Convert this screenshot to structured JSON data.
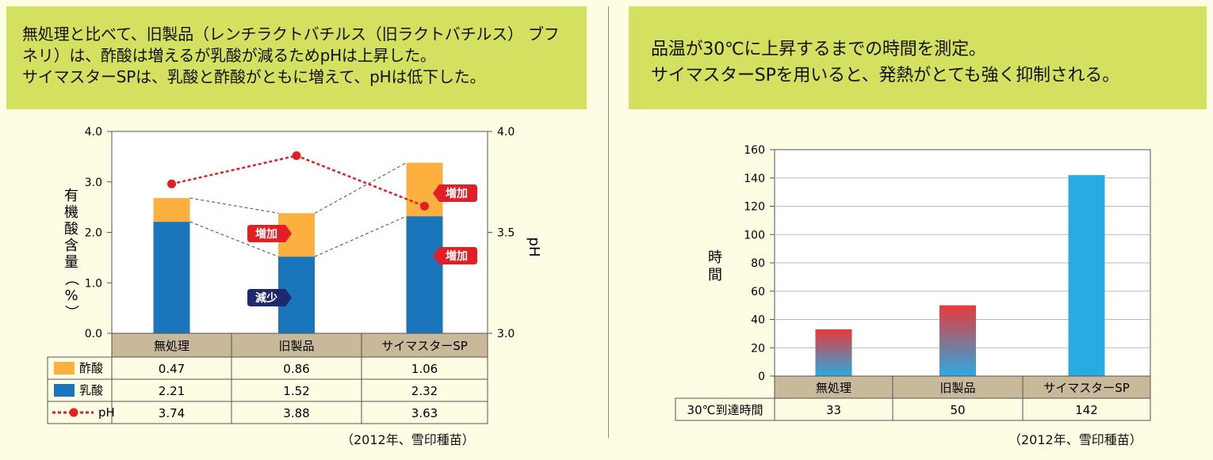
{
  "left_panel": {
    "caption_lines": [
      "無処理と比べて、旧製品（レンチラクトバチルス（旧ラクトバチルス） ブフ",
      "ネリ）は、酢酸は増えるが乳酸が減るためpHは上昇した。",
      "サイマスターSPは、乳酸と酢酸がともに増えて、pHは低下した。"
    ],
    "source": "（2012年、雪印種苗）",
    "annotations": {
      "increase": "増加",
      "decrease": "減少"
    }
  },
  "right_panel": {
    "caption_lines": [
      "品温が30℃に上昇するまでの時間を測定。",
      "サイマスターSPを用いると、発熱がとても強く抑制される。"
    ],
    "source": "（2012年、雪印種苗）"
  },
  "chart_data": [
    {
      "type": "bar",
      "stacked": true,
      "categories": [
        "無処理",
        "旧製品",
        "サイマスターSP"
      ],
      "ylabel": "有機酸含量（%）",
      "ylim": [
        0,
        4.0
      ],
      "yticks": [
        "0.0",
        "1.0",
        "2.0",
        "3.0",
        "4.0"
      ],
      "y2label": "pH",
      "y2lim": [
        3.0,
        4.0
      ],
      "y2ticks": [
        "3.0",
        "3.5",
        "4.0"
      ],
      "grid": false,
      "series": [
        {
          "name": "乳酸",
          "values": [
            2.21,
            1.52,
            2.32
          ],
          "color": "#1b75bb",
          "labels": [
            "2.21",
            "1.52",
            "2.32"
          ]
        },
        {
          "name": "酢酸",
          "values": [
            0.47,
            0.86,
            1.06
          ],
          "color": "#fbb040",
          "labels": [
            "0.47",
            "0.86",
            "1.06"
          ]
        },
        {
          "name": "pH",
          "values": [
            3.74,
            3.88,
            3.63
          ],
          "color": "#e01f26",
          "axis": "right",
          "style": "dotted-line-with-markers",
          "labels": [
            "3.74",
            "3.88",
            "3.63"
          ]
        }
      ],
      "table_order": [
        1,
        0,
        2
      ]
    },
    {
      "type": "bar",
      "categories": [
        "無処理",
        "旧製品",
        "サイマスターSP"
      ],
      "ylabel": "時間",
      "ylim": [
        0,
        160
      ],
      "yticks": [
        "0",
        "20",
        "40",
        "60",
        "80",
        "100",
        "120",
        "140",
        "160"
      ],
      "grid": true,
      "series": [
        {
          "name": "30℃到達時間",
          "values": [
            33,
            50,
            142
          ],
          "labels": [
            "33",
            "50",
            "142"
          ]
        }
      ],
      "colors": {
        "gradient_top": "#e8393b",
        "gradient_bottom": "#29abe2",
        "solid": "#29abe2"
      }
    }
  ],
  "colors": {
    "caption_bg": "#d4e05f",
    "page_bg": "#fdfde4",
    "header_bg": "#c8b99a",
    "callout_red": "#e01f26",
    "callout_navy": "#1f2a6e"
  }
}
